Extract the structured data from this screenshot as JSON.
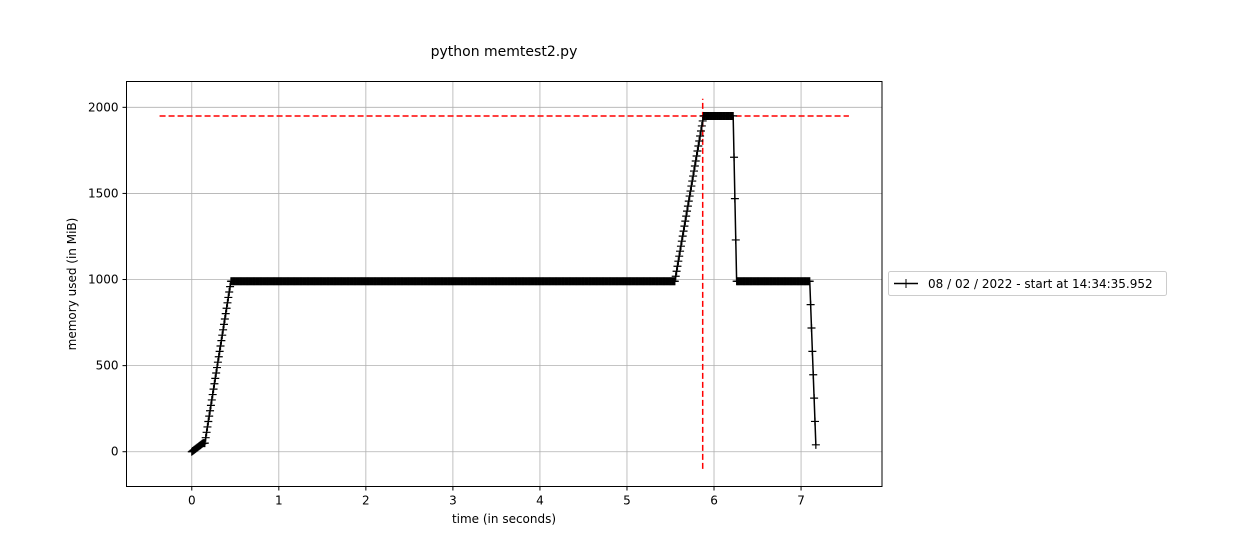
{
  "chart_data": {
    "type": "line",
    "title": "python memtest2.py",
    "xlabel": "time (in seconds)",
    "ylabel": "memory used (in MiB)",
    "xlim": [
      -0.75,
      7.93
    ],
    "ylim": [
      -202,
      2150
    ],
    "grid": true,
    "legend_placement": "right, outside plot area",
    "x_ticks": [
      0,
      1,
      2,
      3,
      4,
      5,
      6,
      7
    ],
    "x_tick_labels": [
      "0",
      "1",
      "2",
      "3",
      "4",
      "5",
      "6",
      "7"
    ],
    "y_ticks": [
      0,
      500,
      1000,
      1500,
      2000
    ],
    "y_tick_labels": [
      "0",
      "500",
      "1000",
      "1500",
      "2000"
    ],
    "series": [
      {
        "name": "08 / 02 / 2022 - start at 14:34:35.952",
        "color": "#000000",
        "marker": "+",
        "sample_interval": 0.01,
        "segments": [
          {
            "x0": 0.0,
            "x1": 0.13,
            "y0": 0,
            "y1": 50
          },
          {
            "x0": 0.13,
            "x1": 0.15,
            "y0": 50,
            "y1": 50
          },
          {
            "x0": 0.15,
            "x1": 0.45,
            "y0": 50,
            "y1": 990
          },
          {
            "x0": 0.45,
            "x1": 5.55,
            "y0": 990,
            "y1": 990
          },
          {
            "x0": 5.55,
            "x1": 5.88,
            "y0": 990,
            "y1": 1950
          },
          {
            "x0": 5.88,
            "x1": 6.22,
            "y0": 1950,
            "y1": 1950
          },
          {
            "x0": 6.22,
            "x1": 6.26,
            "y0": 1950,
            "y1": 990
          },
          {
            "x0": 6.26,
            "x1": 7.1,
            "y0": 990,
            "y1": 990
          },
          {
            "x0": 7.1,
            "x1": 7.17,
            "y0": 990,
            "y1": 40
          }
        ]
      }
    ],
    "annotations": [
      {
        "type": "hline",
        "y": 1950,
        "x_from": -0.37,
        "x_to": 7.55,
        "color": "#ff0000",
        "style": "dashed"
      },
      {
        "type": "vline",
        "x": 5.87,
        "y_from": -100,
        "y_to": 2050,
        "color": "#ff0000",
        "style": "dashed"
      }
    ]
  }
}
